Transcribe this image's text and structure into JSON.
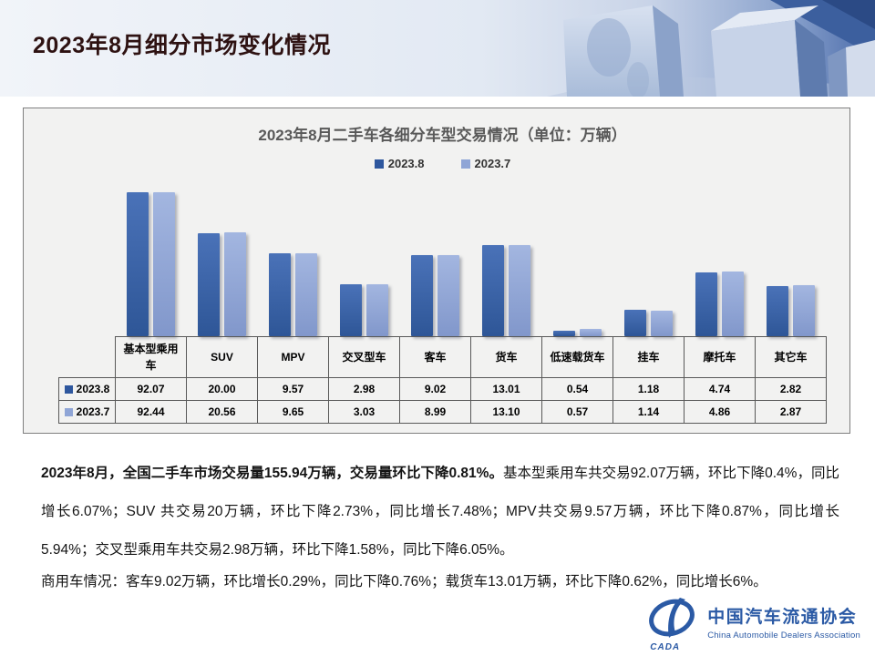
{
  "slide": {
    "title": "2023年8月细分市场变化情况"
  },
  "chart_data": {
    "type": "bar",
    "title": "2023年8月二手车各细分车型交易情况（单位：万辆）",
    "unit": "万辆",
    "categories": [
      "基本型乘用车",
      "SUV",
      "MPV",
      "交叉型车",
      "客车",
      "货车",
      "低速载货车",
      "挂车",
      "摩托车",
      "其它车"
    ],
    "series": [
      {
        "name": "2023.8",
        "color": "#2E579E",
        "values": [
          92.07,
          20.0,
          9.57,
          2.98,
          9.02,
          13.01,
          0.54,
          1.18,
          4.74,
          2.82
        ]
      },
      {
        "name": "2023.7",
        "color": "#8FA5D6",
        "values": [
          92.44,
          20.56,
          9.65,
          3.03,
          8.99,
          13.1,
          0.57,
          1.14,
          4.86,
          2.87
        ]
      }
    ],
    "legend_position": "top-center",
    "value_axis": "hidden; values shown in attached data table",
    "grid": false
  },
  "table": {
    "columns": [
      "基本型乘用车",
      "SUV",
      "MPV",
      "交叉型车",
      "客车",
      "货车",
      "低速载货车",
      "挂车",
      "摩托车",
      "其它车"
    ],
    "rows": [
      {
        "label": "2023.8",
        "values": [
          "92.07",
          "20.00",
          "9.57",
          "2.98",
          "9.02",
          "13.01",
          "0.54",
          "1.18",
          "4.74",
          "2.82"
        ]
      },
      {
        "label": "2023.7",
        "values": [
          "92.44",
          "20.56",
          "9.65",
          "3.03",
          "8.99",
          "13.10",
          "0.57",
          "1.14",
          "4.86",
          "2.87"
        ]
      }
    ]
  },
  "summary": {
    "p1_bold": "2023年8月，全国二手车市场交易量155.94万辆，交易量环比下降0.81%。",
    "p1_rest": "基本型乘用车共交易92.07万辆，环比下降0.4%，同比增长6.07%；SUV 共交易20万辆，环比下降2.73%，同比增长7.48%；MPV共交易9.57万辆，环比下降0.87%，同比增长5.94%；交叉型乘用车共交易2.98万辆，环比下降1.58%，同比下降6.05%。",
    "p2": "商用车情况：客车9.02万辆，环比增长0.29%，同比下降0.76%；载货车13.01万辆，环比下降0.62%，同比增长6%。"
  },
  "logo": {
    "abbr": "CADA",
    "cn": "中国汽车流通协会",
    "en": "China Automobile Dealers Association",
    "color": "#2B5AA5"
  }
}
